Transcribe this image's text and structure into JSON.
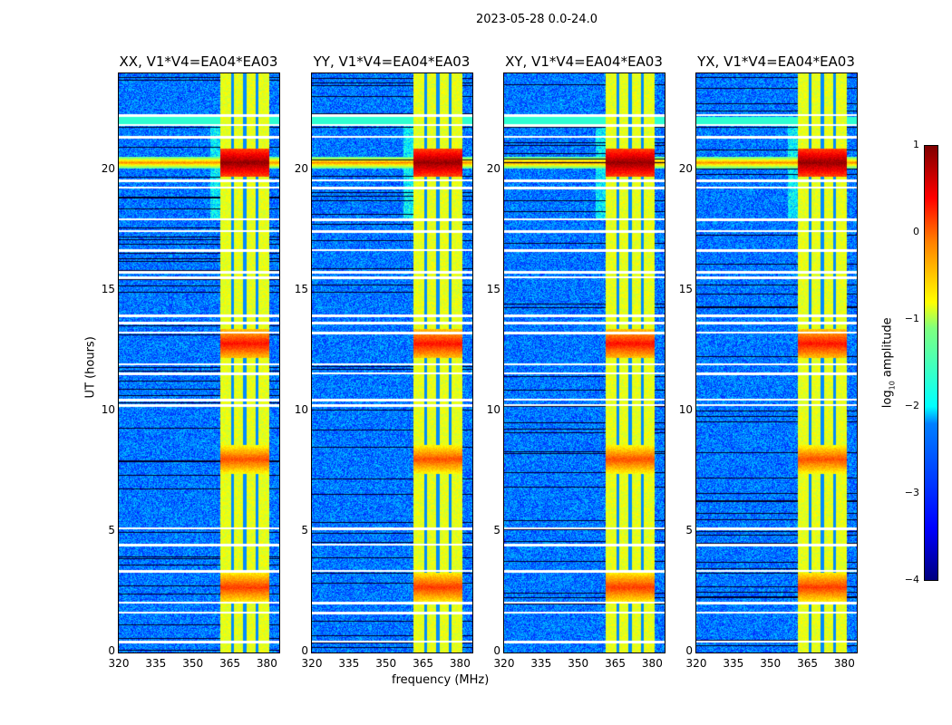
{
  "suptitle": "2023-05-28 0.0-24.0",
  "chart_data": {
    "type": "heatmap",
    "title": "2023-05-28 0.0-24.0",
    "xlabel": "frequency (MHz)",
    "ylabel": "UT (hours)",
    "xlim": [
      320,
      385
    ],
    "ylim": [
      0,
      24
    ],
    "xticks": [
      "320",
      "335",
      "350",
      "365",
      "380"
    ],
    "yticks": [
      "0",
      "5",
      "10",
      "15",
      "20"
    ],
    "colorbar": {
      "label": "log10 amplitude",
      "label_main": "log",
      "label_sub": "10",
      "label_rest": " amplitude",
      "range": [
        -4,
        1
      ],
      "ticks": [
        "1",
        "0",
        "−1",
        "−2",
        "−3",
        "−4"
      ],
      "colormap": "jet"
    },
    "panels": [
      {
        "title": "XX, V1*V4=EA04*EA03"
      },
      {
        "title": "YY, V1*V4=EA04*EA03"
      },
      {
        "title": "XY, V1*V4=EA04*EA03"
      },
      {
        "title": "YX, V1*V4=EA04*EA03"
      }
    ],
    "features": {
      "background_level": -2.8,
      "band_mhz": [
        361,
        381
      ],
      "band_level": -1.0,
      "band_gaps_mhz": [
        366,
        371,
        376
      ],
      "bright_events_ut": [
        {
          "ut": 20.3,
          "level": 0.9
        },
        {
          "ut": 12.8,
          "level": 0.3
        },
        {
          "ut": 2.7,
          "level": 0.1
        },
        {
          "ut": 8.0,
          "level": 0.0
        }
      ],
      "flagged_ut": [
        0.5,
        1.7,
        2.1,
        3.4,
        4.5,
        5.2,
        11.6,
        10.3,
        10.5,
        12.0,
        13.3,
        13.7,
        14.0,
        15.6,
        15.8,
        16.7,
        17.5,
        18.0,
        19.3,
        19.6,
        21.4,
        21.9,
        22.3
      ]
    }
  }
}
